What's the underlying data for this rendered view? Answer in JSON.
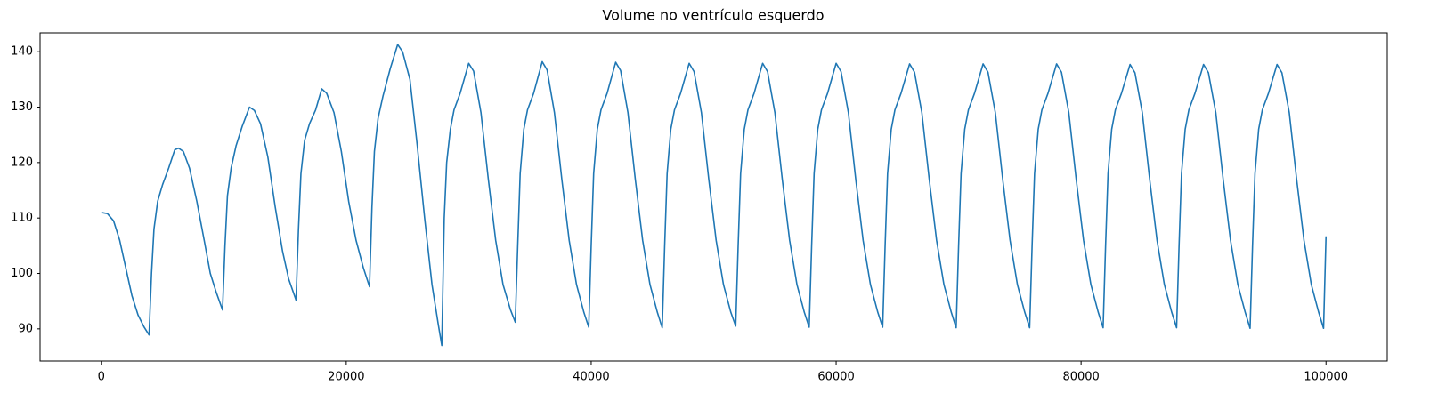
{
  "chart_data": {
    "type": "line",
    "title": "Volume no ventrículo esquerdo",
    "color": "#1f77b4",
    "x": [
      0,
      500,
      1000,
      1500,
      2000,
      2500,
      3000,
      3500,
      3900,
      4100,
      4300,
      4600,
      5000,
      5500,
      6000,
      6300,
      6700,
      7200,
      7800,
      8400,
      8900,
      9400,
      9900,
      10100,
      10300,
      10600,
      11000,
      11500,
      12100,
      12500,
      13000,
      13600,
      14200,
      14800,
      15300,
      15900,
      16100,
      16300,
      16600,
      17000,
      17500,
      18000,
      18400,
      19000,
      19600,
      20200,
      20800,
      21400,
      21900,
      22100,
      22300,
      22600,
      23000,
      23600,
      24200,
      24600,
      25200,
      25800,
      26400,
      27000,
      27500,
      27800,
      28000,
      28200,
      28500,
      28800,
      29300,
      30000,
      30400,
      31000,
      31600,
      32200,
      32800,
      33400,
      33800,
      34000,
      34200,
      34500,
      34800,
      35300,
      36000,
      36400,
      37000,
      37600,
      38200,
      38800,
      39400,
      39800,
      40000,
      40200,
      40500,
      40800,
      41300,
      42000,
      42400,
      43000,
      43600,
      44200,
      44800,
      45400,
      45800,
      46000,
      46200,
      46500,
      46800,
      47300,
      48000,
      48400,
      49000,
      49600,
      50200,
      50800,
      51400,
      51800,
      52000,
      52200,
      52500,
      52800,
      53300,
      54000,
      54400,
      55000,
      55600,
      56200,
      56800,
      57400,
      57800,
      58000,
      58200,
      58500,
      58800,
      59300,
      60000,
      60400,
      61000,
      61600,
      62200,
      62800,
      63400,
      63800,
      64000,
      64200,
      64500,
      64800,
      65300,
      66000,
      66400,
      67000,
      67600,
      68200,
      68800,
      69400,
      69800,
      70000,
      70200,
      70500,
      70800,
      71300,
      72000,
      72400,
      73000,
      73600,
      74200,
      74800,
      75400,
      75800,
      76000,
      76200,
      76500,
      76800,
      77300,
      78000,
      78400,
      79000,
      79600,
      80200,
      80800,
      81400,
      81800,
      82000,
      82200,
      82500,
      82800,
      83300,
      84000,
      84400,
      85000,
      85600,
      86200,
      86800,
      87400,
      87800,
      88000,
      88200,
      88500,
      88800,
      89300,
      90000,
      90400,
      91000,
      91600,
      92200,
      92800,
      93400,
      93800,
      94000,
      94200,
      94500,
      94800,
      95300,
      96000,
      96400,
      97000,
      97600,
      98200,
      98800,
      99400,
      99800,
      100000
    ],
    "values": [
      111,
      110.8,
      109.5,
      106,
      101,
      96,
      92.5,
      90.3,
      88.9,
      100,
      108,
      113,
      116,
      119,
      122.3,
      122.6,
      122,
      119,
      113,
      106,
      100,
      96.5,
      93.4,
      105,
      114,
      119,
      123,
      126.5,
      130,
      129.4,
      127,
      121,
      112,
      104,
      99,
      95.2,
      108,
      118,
      124,
      127,
      129.5,
      133.3,
      132.5,
      129,
      122,
      113,
      106,
      101,
      97.6,
      112,
      122,
      128,
      132,
      137,
      141.3,
      140,
      135,
      123,
      110,
      98,
      91,
      87,
      110,
      120,
      126,
      129.5,
      132.5,
      137.9,
      136.5,
      129,
      117,
      106,
      98,
      93.5,
      91.2,
      105,
      118,
      126,
      129.5,
      132.5,
      138.2,
      136.7,
      129,
      117,
      106,
      98,
      93,
      90.3,
      105,
      118,
      126,
      129.5,
      132.5,
      138.1,
      136.6,
      129,
      117,
      106,
      98,
      93,
      90.2,
      105,
      118,
      126,
      129.5,
      132.5,
      137.9,
      136.4,
      129,
      117,
      106,
      98,
      93,
      90.5,
      105,
      118,
      126,
      129.5,
      132.5,
      137.9,
      136.4,
      129,
      117,
      106,
      98,
      93,
      90.3,
      105,
      118,
      126,
      129.5,
      132.5,
      137.9,
      136.4,
      129,
      117,
      106,
      98,
      93,
      90.3,
      105,
      118,
      126,
      129.5,
      132.5,
      137.8,
      136.3,
      129,
      117,
      106,
      98,
      93,
      90.2,
      105,
      118,
      126,
      129.5,
      132.5,
      137.8,
      136.3,
      129,
      117,
      106,
      98,
      93,
      90.2,
      105,
      118,
      126,
      129.5,
      132.5,
      137.8,
      136.3,
      129,
      117,
      106,
      98,
      93,
      90.2,
      105,
      118,
      126,
      129.5,
      132.5,
      137.7,
      136.2,
      129,
      117,
      106,
      98,
      93,
      90.2,
      105,
      118,
      126,
      129.5,
      132.5,
      137.7,
      136.2,
      129,
      117,
      106,
      98,
      93,
      90.1,
      105,
      118,
      126,
      129.5,
      132.5,
      137.7,
      136.2,
      129,
      117,
      106,
      98,
      93,
      90.1,
      106.7
    ],
    "xlim": [
      -5000,
      105000
    ],
    "xticks": [
      0,
      20000,
      40000,
      60000,
      80000,
      100000
    ],
    "ylim": [
      84.2,
      143.4
    ],
    "yticks": [
      90,
      100,
      110,
      120,
      130,
      140
    ]
  }
}
